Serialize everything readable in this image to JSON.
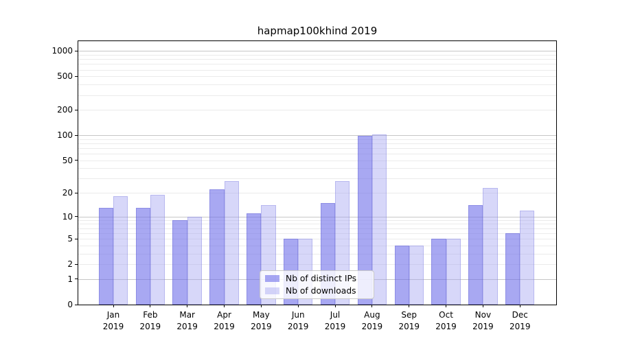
{
  "figure": {
    "background": "#ffffff"
  },
  "chart_data": {
    "type": "bar",
    "title": "hapmap100khind 2019",
    "categories": [
      "Jan 2019",
      "Feb 2019",
      "Mar 2019",
      "Apr 2019",
      "May 2019",
      "Jun 2019",
      "Jul 2019",
      "Aug 2019",
      "Sep 2019",
      "Oct 2019",
      "Nov 2019",
      "Dec 2019"
    ],
    "series": [
      {
        "name": "Nb of distinct IPs",
        "fill": "rgba(110,110,233,0.60)",
        "edge": "rgba(80,80,200,0.30)",
        "solid_hex": "#a6a6f1",
        "values": [
          13,
          13,
          9,
          22,
          11,
          5,
          15,
          98,
          4,
          5,
          14,
          6
        ]
      },
      {
        "name": "Nb of downloads",
        "fill": "rgba(160,160,240,0.42)",
        "edge": "rgba(110,110,215,0.30)",
        "solid_hex": "#d7d7f9",
        "values": [
          18,
          19,
          10,
          28,
          14,
          5,
          28,
          103,
          4,
          5,
          23,
          12
        ]
      }
    ],
    "xlabel": "",
    "ylabel": "",
    "yscale": "log10(value+1)",
    "ylim": [
      0,
      1300
    ],
    "yticks": [
      0,
      1,
      2,
      5,
      10,
      20,
      50,
      100,
      200,
      500,
      1000
    ],
    "major_gridlines": [
      1,
      10,
      100,
      1000
    ],
    "minor_gridlines": [
      2,
      3,
      4,
      5,
      6,
      7,
      8,
      9,
      20,
      30,
      40,
      50,
      60,
      70,
      80,
      90,
      200,
      300,
      400,
      500,
      600,
      700,
      800,
      900
    ],
    "grid_color_major": "#c6c6c6",
    "grid_color_minor": "#ebebeb",
    "legend": {
      "position": "lower center",
      "entries": [
        "Nb of distinct IPs",
        "Nb of downloads"
      ]
    }
  }
}
